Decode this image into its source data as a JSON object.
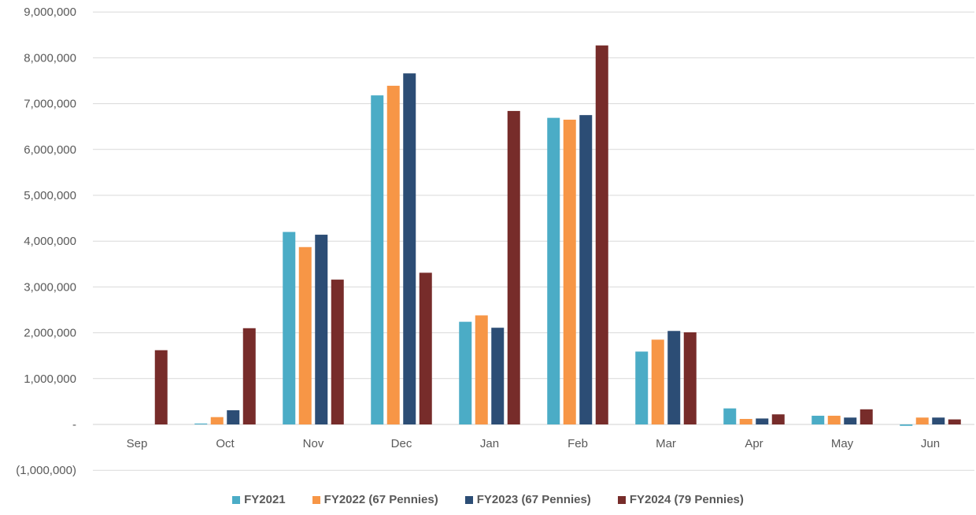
{
  "chart_data": {
    "type": "bar",
    "title": "",
    "xlabel": "",
    "ylabel": "",
    "categories": [
      "Sep",
      "Oct",
      "Nov",
      "Dec",
      "Jan",
      "Feb",
      "Mar",
      "Apr",
      "May",
      "Jun"
    ],
    "ylim": [
      -1000000,
      9000000
    ],
    "yticks": [
      -1000000,
      0,
      1000000,
      2000000,
      3000000,
      4000000,
      5000000,
      6000000,
      7000000,
      8000000,
      9000000
    ],
    "ytick_labels": [
      "(1,000,000)",
      "-",
      "1,000,000",
      "2,000,000",
      "3,000,000",
      "4,000,000",
      "5,000,000",
      "6,000,000",
      "7,000,000",
      "8,000,000",
      "9,000,000"
    ],
    "grid": true,
    "legend_position": "bottom",
    "series": [
      {
        "name": "FY2021",
        "color": "#4bacc6",
        "values": [
          0,
          20000,
          4200000,
          7180000,
          2240000,
          6690000,
          1590000,
          350000,
          190000,
          -30000
        ]
      },
      {
        "name": "FY2022 (67 Pennies)",
        "color": "#f79646",
        "values": [
          0,
          160000,
          3870000,
          7390000,
          2380000,
          6650000,
          1850000,
          120000,
          190000,
          150000
        ]
      },
      {
        "name": "FY2023 (67 Pennies)",
        "color": "#2c4d75",
        "values": [
          0,
          310000,
          4140000,
          7660000,
          2110000,
          6750000,
          2040000,
          130000,
          150000,
          150000
        ]
      },
      {
        "name": "FY2024 (79 Pennies)",
        "color": "#772c2a",
        "values": [
          1620000,
          2100000,
          3160000,
          3310000,
          6840000,
          8270000,
          2010000,
          220000,
          330000,
          110000
        ]
      }
    ]
  }
}
